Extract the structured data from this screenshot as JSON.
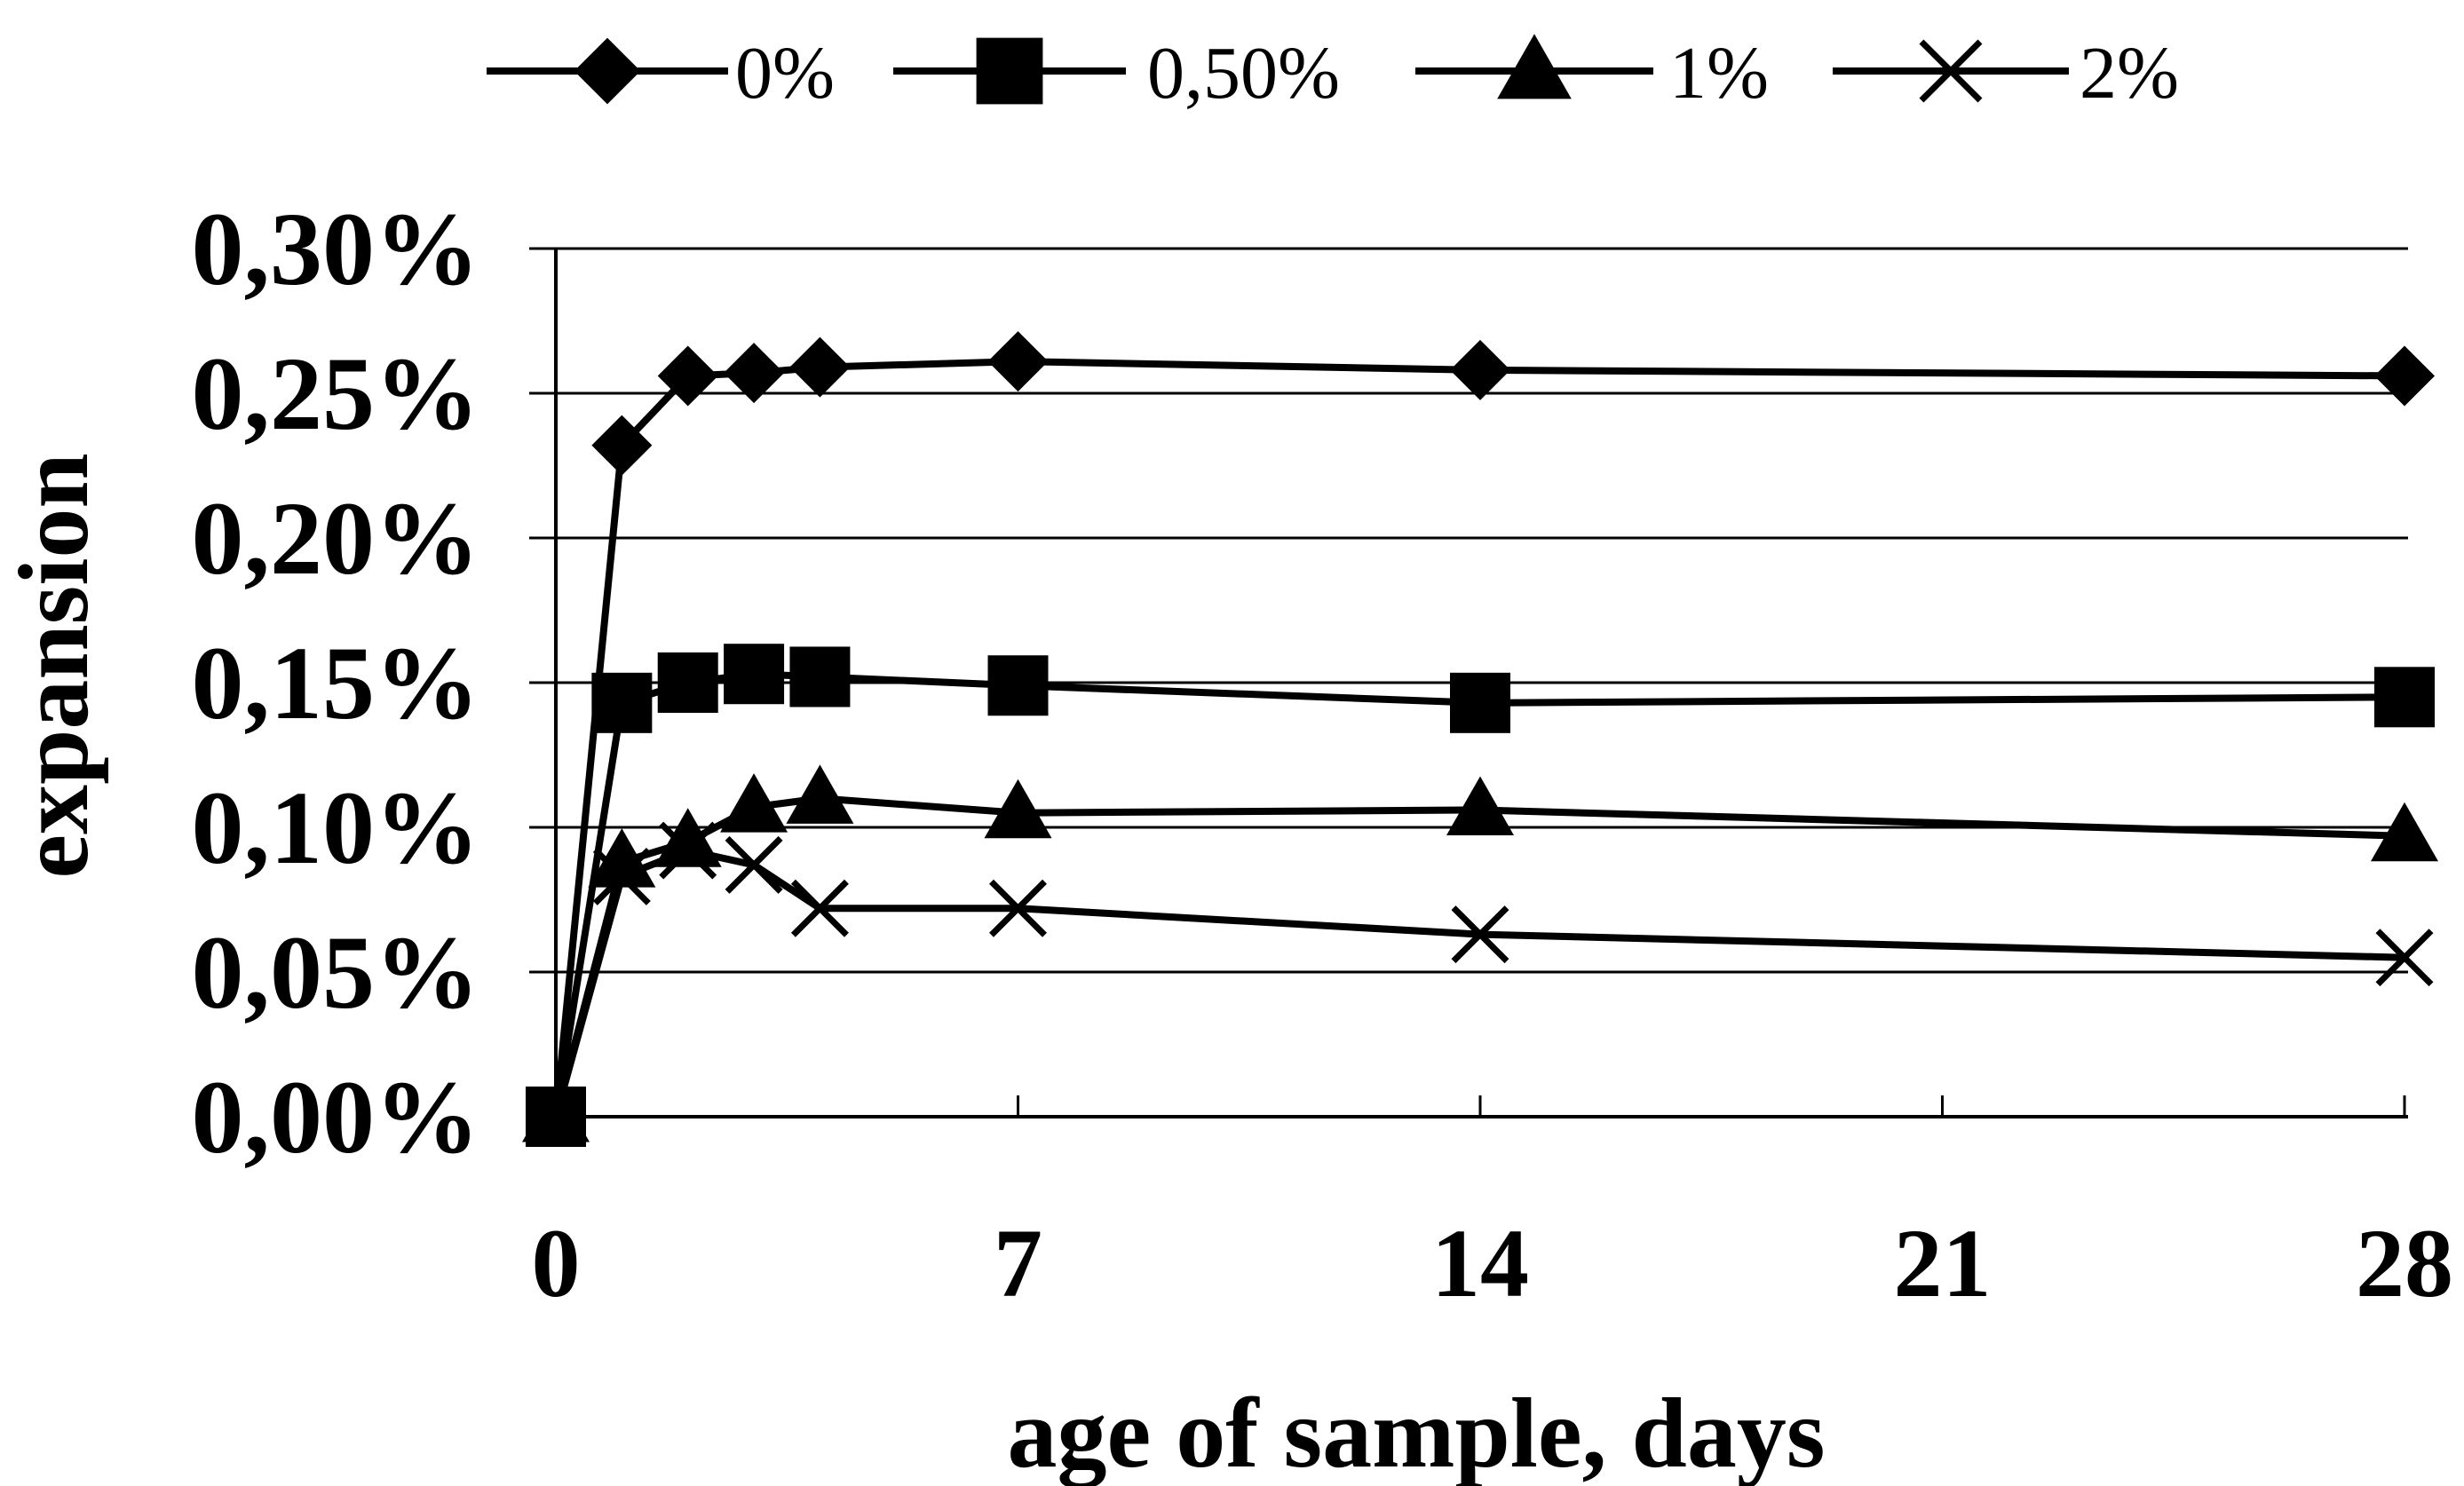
{
  "chart_data": {
    "type": "line",
    "title": "",
    "xlabel": "age of sample, days",
    "ylabel": "expansion",
    "xlim": [
      0,
      28
    ],
    "ylim": [
      0,
      0.3
    ],
    "x_ticks": [
      "0",
      "7",
      "14",
      "21",
      "28"
    ],
    "y_ticks": [
      "0,00%",
      "0,05%",
      "0,10%",
      "0,15%",
      "0,20%",
      "0,25%",
      "0,30%"
    ],
    "grid": "horizontal",
    "legend_position": "top",
    "line_color": "#000000",
    "series": [
      {
        "name": "0%",
        "marker": "diamond",
        "x": [
          0,
          1,
          2,
          3,
          4,
          7,
          14,
          28
        ],
        "y": [
          0.0,
          0.232,
          0.256,
          0.257,
          0.259,
          0.261,
          0.258,
          0.256
        ]
      },
      {
        "name": "0,50%",
        "marker": "square",
        "x": [
          0,
          1,
          2,
          3,
          4,
          7,
          14,
          28
        ],
        "y": [
          0.0,
          0.143,
          0.15,
          0.153,
          0.152,
          0.149,
          0.143,
          0.145
        ]
      },
      {
        "name": "1%",
        "marker": "triangle",
        "x": [
          0,
          1,
          2,
          3,
          4,
          7,
          14,
          28
        ],
        "y": [
          0.0,
          0.088,
          0.095,
          0.107,
          0.11,
          0.105,
          0.106,
          0.097
        ]
      },
      {
        "name": "2%",
        "marker": "x",
        "x": [
          0,
          1,
          2,
          3,
          4,
          7,
          14,
          28
        ],
        "y": [
          0.0,
          0.083,
          0.092,
          0.087,
          0.072,
          0.072,
          0.063,
          0.055
        ]
      }
    ]
  }
}
